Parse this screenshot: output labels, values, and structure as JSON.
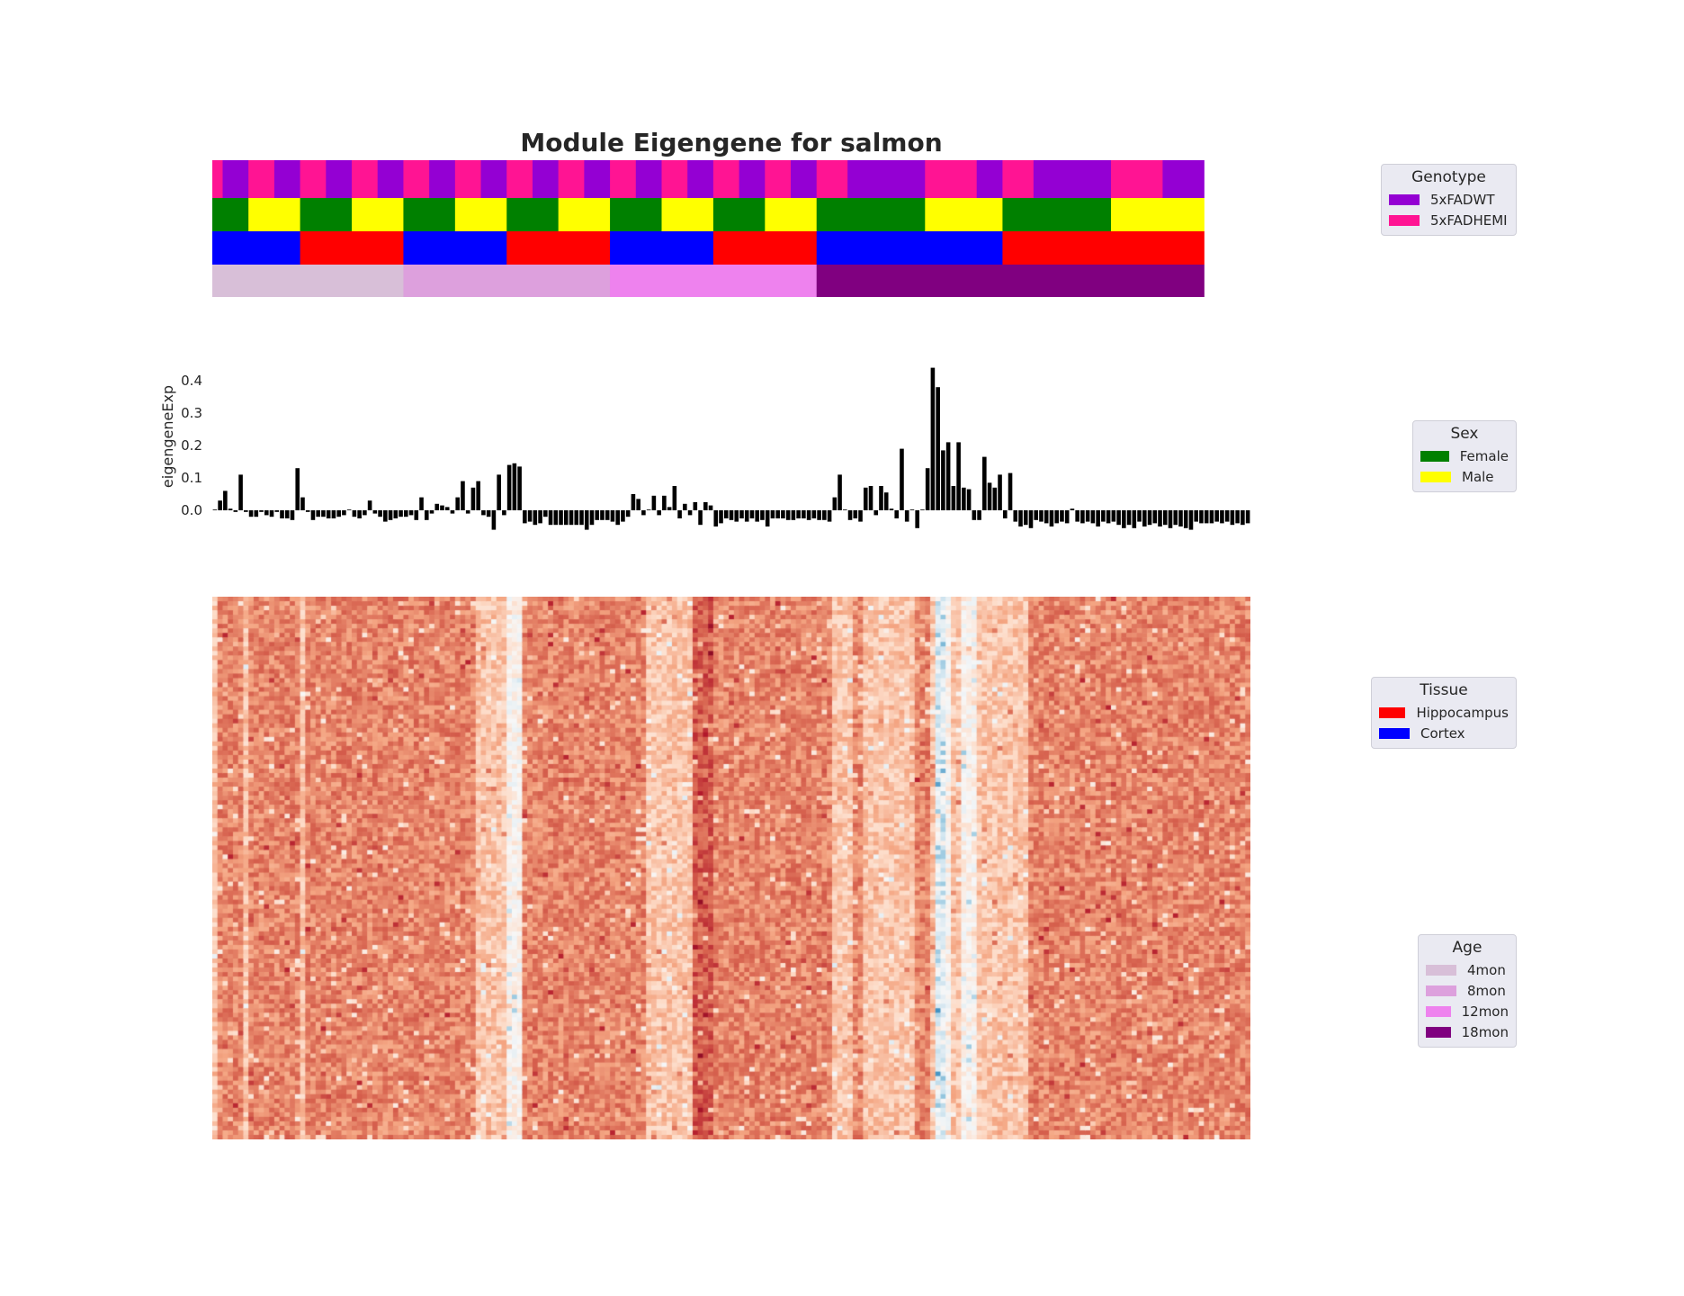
{
  "chart_data": {
    "type": "bar",
    "title": "Module Eigengene for salmon",
    "ylabel": "eigengeneExp",
    "xlabel": "",
    "ylim": [
      -0.07,
      0.45
    ],
    "yticks": [
      "0.0",
      "0.1",
      "0.2",
      "0.3",
      "0.4"
    ],
    "values": [
      0.0,
      0.03,
      0.06,
      0.005,
      -0.005,
      0.11,
      -0.005,
      -0.02,
      -0.02,
      -0.005,
      -0.015,
      -0.02,
      -0.005,
      -0.025,
      -0.025,
      -0.03,
      0.13,
      0.04,
      -0.005,
      -0.03,
      -0.02,
      -0.02,
      -0.025,
      -0.025,
      -0.02,
      -0.015,
      0.0,
      -0.02,
      -0.025,
      -0.015,
      0.03,
      -0.01,
      -0.02,
      -0.035,
      -0.03,
      -0.025,
      -0.02,
      -0.02,
      -0.015,
      -0.03,
      0.04,
      -0.03,
      -0.01,
      0.02,
      0.015,
      0.01,
      -0.01,
      0.04,
      0.09,
      -0.01,
      0.07,
      0.09,
      -0.015,
      -0.02,
      -0.06,
      0.11,
      -0.015,
      0.14,
      0.145,
      0.135,
      -0.04,
      -0.035,
      -0.045,
      -0.04,
      -0.02,
      -0.045,
      -0.045,
      -0.045,
      -0.045,
      -0.045,
      -0.045,
      -0.045,
      -0.06,
      -0.045,
      -0.03,
      -0.03,
      -0.03,
      -0.035,
      -0.045,
      -0.035,
      -0.02,
      0.05,
      0.035,
      -0.015,
      0.0,
      0.045,
      -0.015,
      0.045,
      0.01,
      0.075,
      -0.025,
      0.02,
      -0.015,
      0.025,
      -0.045,
      0.025,
      0.015,
      -0.05,
      -0.04,
      -0.025,
      -0.03,
      -0.035,
      -0.025,
      -0.035,
      -0.025,
      -0.035,
      -0.03,
      -0.05,
      -0.025,
      -0.025,
      -0.025,
      -0.03,
      -0.03,
      -0.025,
      -0.025,
      -0.03,
      -0.025,
      -0.03,
      -0.03,
      -0.035,
      0.04,
      0.11,
      0.0,
      -0.03,
      -0.025,
      -0.035,
      0.07,
      0.075,
      -0.015,
      0.075,
      0.055,
      0.005,
      -0.025,
      0.19,
      -0.035,
      0.0,
      -0.055,
      0.0,
      0.13,
      0.44,
      0.38,
      0.185,
      0.21,
      0.075,
      0.21,
      0.07,
      0.065,
      -0.03,
      -0.03,
      0.165,
      0.085,
      0.07,
      0.11,
      -0.025,
      0.115,
      -0.035,
      -0.05,
      -0.045,
      -0.055,
      -0.03,
      -0.035,
      -0.04,
      -0.05,
      -0.04,
      -0.035,
      -0.04,
      0.005,
      -0.035,
      -0.04,
      -0.035,
      -0.04,
      -0.05,
      -0.035,
      -0.04,
      -0.035,
      -0.045,
      -0.055,
      -0.045,
      -0.055,
      -0.035,
      -0.05,
      -0.045,
      -0.04,
      -0.05,
      -0.045,
      -0.055,
      -0.045,
      -0.05,
      -0.055,
      -0.06,
      -0.035,
      -0.04,
      -0.04,
      -0.04,
      -0.035,
      -0.04,
      -0.035,
      -0.045,
      -0.04,
      -0.045,
      -0.04
    ],
    "annotations": {
      "genotype_runs": [
        {
          "label": "5xFADHEMI",
          "from": 0,
          "to": 2
        },
        {
          "label": "5xFADWT",
          "from": 2,
          "to": 7
        },
        {
          "label": "5xFADHEMI",
          "from": 7,
          "to": 12
        },
        {
          "label": "5xFADWT",
          "from": 12,
          "to": 17
        },
        {
          "label": "5xFADHEMI",
          "from": 17,
          "to": 22
        },
        {
          "label": "5xFADWT",
          "from": 22,
          "to": 27
        },
        {
          "label": "5xFADHEMI",
          "from": 27,
          "to": 32
        },
        {
          "label": "5xFADWT",
          "from": 32,
          "to": 37
        },
        {
          "label": "5xFADHEMI",
          "from": 37,
          "to": 42
        },
        {
          "label": "5xFADWT",
          "from": 42,
          "to": 47
        },
        {
          "label": "5xFADHEMI",
          "from": 47,
          "to": 52
        },
        {
          "label": "5xFADWT",
          "from": 52,
          "to": 57
        },
        {
          "label": "5xFADHEMI",
          "from": 57,
          "to": 62
        },
        {
          "label": "5xFADWT",
          "from": 62,
          "to": 67
        },
        {
          "label": "5xFADHEMI",
          "from": 67,
          "to": 72
        },
        {
          "label": "5xFADWT",
          "from": 72,
          "to": 77
        },
        {
          "label": "5xFADHEMI",
          "from": 77,
          "to": 82
        },
        {
          "label": "5xFADWT",
          "from": 82,
          "to": 87
        },
        {
          "label": "5xFADHEMI",
          "from": 87,
          "to": 92
        },
        {
          "label": "5xFADWT",
          "from": 92,
          "to": 97
        },
        {
          "label": "5xFADHEMI",
          "from": 97,
          "to": 102
        },
        {
          "label": "5xFADWT",
          "from": 102,
          "to": 107
        },
        {
          "label": "5xFADHEMI",
          "from": 107,
          "to": 112
        },
        {
          "label": "5xFADWT",
          "from": 112,
          "to": 117
        },
        {
          "label": "5xFADHEMI",
          "from": 117,
          "to": 123
        },
        {
          "label": "5xFADWT",
          "from": 123,
          "to": 138
        },
        {
          "label": "5xFADHEMI",
          "from": 138,
          "to": 148
        },
        {
          "label": "5xFADWT",
          "from": 148,
          "to": 153
        },
        {
          "label": "5xFADHEMI",
          "from": 153,
          "to": 159
        },
        {
          "label": "5xFADWT",
          "from": 159,
          "to": 174
        },
        {
          "label": "5xFADHEMI",
          "from": 174,
          "to": 184
        },
        {
          "label": "5xFADWT",
          "from": 184,
          "to": 192
        }
      ],
      "sex_runs": [
        {
          "label": "Female",
          "from": 0,
          "to": 7
        },
        {
          "label": "Male",
          "from": 7,
          "to": 17
        },
        {
          "label": "Female",
          "from": 17,
          "to": 27
        },
        {
          "label": "Male",
          "from": 27,
          "to": 37
        },
        {
          "label": "Female",
          "from": 37,
          "to": 47
        },
        {
          "label": "Male",
          "from": 47,
          "to": 57
        },
        {
          "label": "Female",
          "from": 57,
          "to": 67
        },
        {
          "label": "Male",
          "from": 67,
          "to": 77
        },
        {
          "label": "Female",
          "from": 77,
          "to": 87
        },
        {
          "label": "Male",
          "from": 87,
          "to": 97
        },
        {
          "label": "Female",
          "from": 97,
          "to": 107
        },
        {
          "label": "Male",
          "from": 107,
          "to": 117
        },
        {
          "label": "Female",
          "from": 117,
          "to": 138
        },
        {
          "label": "Male",
          "from": 138,
          "to": 153
        },
        {
          "label": "Female",
          "from": 153,
          "to": 174
        },
        {
          "label": "Male",
          "from": 174,
          "to": 192
        }
      ],
      "tissue_runs": [
        {
          "label": "Cortex",
          "from": 0,
          "to": 17
        },
        {
          "label": "Hippocampus",
          "from": 17,
          "to": 37
        },
        {
          "label": "Cortex",
          "from": 37,
          "to": 57
        },
        {
          "label": "Hippocampus",
          "from": 57,
          "to": 77
        },
        {
          "label": "Cortex",
          "from": 77,
          "to": 97
        },
        {
          "label": "Hippocampus",
          "from": 97,
          "to": 117
        },
        {
          "label": "Cortex",
          "from": 117,
          "to": 153
        },
        {
          "label": "Hippocampus",
          "from": 153,
          "to": 192
        }
      ],
      "age_runs": [
        {
          "label": "4mon",
          "from": 0,
          "to": 37
        },
        {
          "label": "8mon",
          "from": 37,
          "to": 77
        },
        {
          "label": "12mon",
          "from": 77,
          "to": 117
        },
        {
          "label": "18mon",
          "from": 117,
          "to": 192
        }
      ]
    },
    "heatmap": {
      "rows": 120,
      "light_columns": [
        0,
        6,
        17,
        51,
        52,
        53,
        54,
        55,
        56,
        57,
        84,
        85,
        86,
        87,
        88,
        89,
        90,
        91,
        92,
        120,
        121,
        122,
        123,
        126,
        127,
        128,
        129,
        130,
        131,
        132,
        133,
        134,
        135,
        139,
        140,
        141,
        142,
        143,
        144,
        145,
        146,
        147,
        148,
        149,
        150,
        151,
        152,
        153,
        154,
        155,
        156,
        157
      ],
      "whitest_columns": [
        57,
        58,
        59,
        140,
        141,
        142,
        145,
        146,
        147
      ],
      "blue_columns": [
        140,
        141
      ],
      "dark_columns": [
        93,
        94,
        95,
        96
      ]
    }
  },
  "legends": {
    "genotype": {
      "title": "Genotype",
      "items": [
        {
          "label": "5xFADWT",
          "color": "#9400d3"
        },
        {
          "label": "5xFADHEMI",
          "color": "#ff1493"
        }
      ]
    },
    "sex": {
      "title": "Sex",
      "items": [
        {
          "label": "Female",
          "color": "#008000"
        },
        {
          "label": "Male",
          "color": "#ffff00"
        }
      ]
    },
    "tissue": {
      "title": "Tissue",
      "items": [
        {
          "label": "Hippocampus",
          "color": "#ff0000"
        },
        {
          "label": "Cortex",
          "color": "#0000ff"
        }
      ]
    },
    "age": {
      "title": "Age",
      "items": [
        {
          "label": "4mon",
          "color": "#d8bfd8"
        },
        {
          "label": "8mon",
          "color": "#dda0dd"
        },
        {
          "label": "12mon",
          "color": "#ee82ee"
        },
        {
          "label": "18mon",
          "color": "#800080"
        }
      ]
    }
  }
}
